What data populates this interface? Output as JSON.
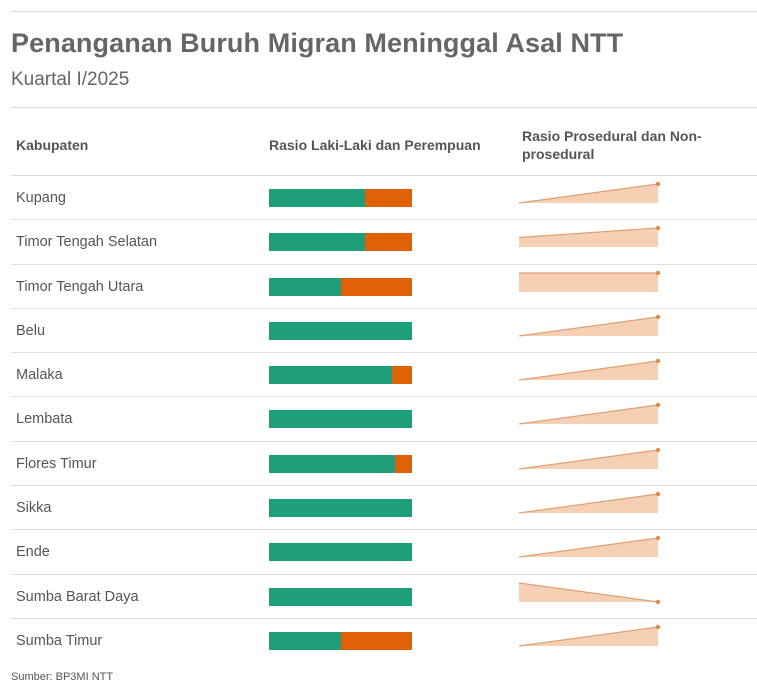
{
  "header": {
    "title": "Penanganan Buruh Migran Meninggal Asal NTT",
    "subtitle": "Kuartal I/2025"
  },
  "columns": {
    "kabupaten": "Kabupaten",
    "rasio_gender": "Rasio Laki-Laki dan Perempuan",
    "rasio_prosedural": "Rasio Prosedural dan Non-prosedural"
  },
  "source": "Sumber: BP3MI NTT",
  "colors": {
    "male": "#1f9e7a",
    "female": "#e06208",
    "spark_fill": "#f5d0b5",
    "spark_line": "#e0a070",
    "spark_dot": "#e08a45"
  },
  "chart_data": {
    "type": "table",
    "columns": [
      "Kabupaten",
      "Rasio Laki-Laki dan Perempuan",
      "Rasio Prosedural dan Non-prosedural"
    ],
    "rows": [
      {
        "kabupaten": "Kupang",
        "male_share": 0.67,
        "female_share": 0.33,
        "spark": [
          0.0,
          1.0
        ]
      },
      {
        "kabupaten": "Timor Tengah Selatan",
        "male_share": 0.67,
        "female_share": 0.33,
        "spark": [
          0.5,
          1.0
        ]
      },
      {
        "kabupaten": "Timor Tengah Utara",
        "male_share": 0.5,
        "female_share": 0.5,
        "spark": [
          1.0,
          1.0
        ]
      },
      {
        "kabupaten": "Belu",
        "male_share": 1.0,
        "female_share": 0.0,
        "spark": [
          0.0,
          1.0
        ]
      },
      {
        "kabupaten": "Malaka",
        "male_share": 0.86,
        "female_share": 0.14,
        "spark": [
          0.0,
          1.0
        ]
      },
      {
        "kabupaten": "Lembata",
        "male_share": 1.0,
        "female_share": 0.0,
        "spark": [
          0.0,
          1.0
        ]
      },
      {
        "kabupaten": "Flores Timur",
        "male_share": 0.88,
        "female_share": 0.12,
        "spark": [
          0.0,
          1.0
        ]
      },
      {
        "kabupaten": "Sikka",
        "male_share": 1.0,
        "female_share": 0.0,
        "spark": [
          0.0,
          1.0
        ]
      },
      {
        "kabupaten": "Ende",
        "male_share": 1.0,
        "female_share": 0.0,
        "spark": [
          0.0,
          1.0
        ]
      },
      {
        "kabupaten": "Sumba Barat Daya",
        "male_share": 1.0,
        "female_share": 0.0,
        "spark": [
          1.0,
          0.0
        ]
      },
      {
        "kabupaten": "Sumba Timur",
        "male_share": 0.5,
        "female_share": 0.5,
        "spark": [
          0.0,
          1.0
        ]
      }
    ]
  }
}
